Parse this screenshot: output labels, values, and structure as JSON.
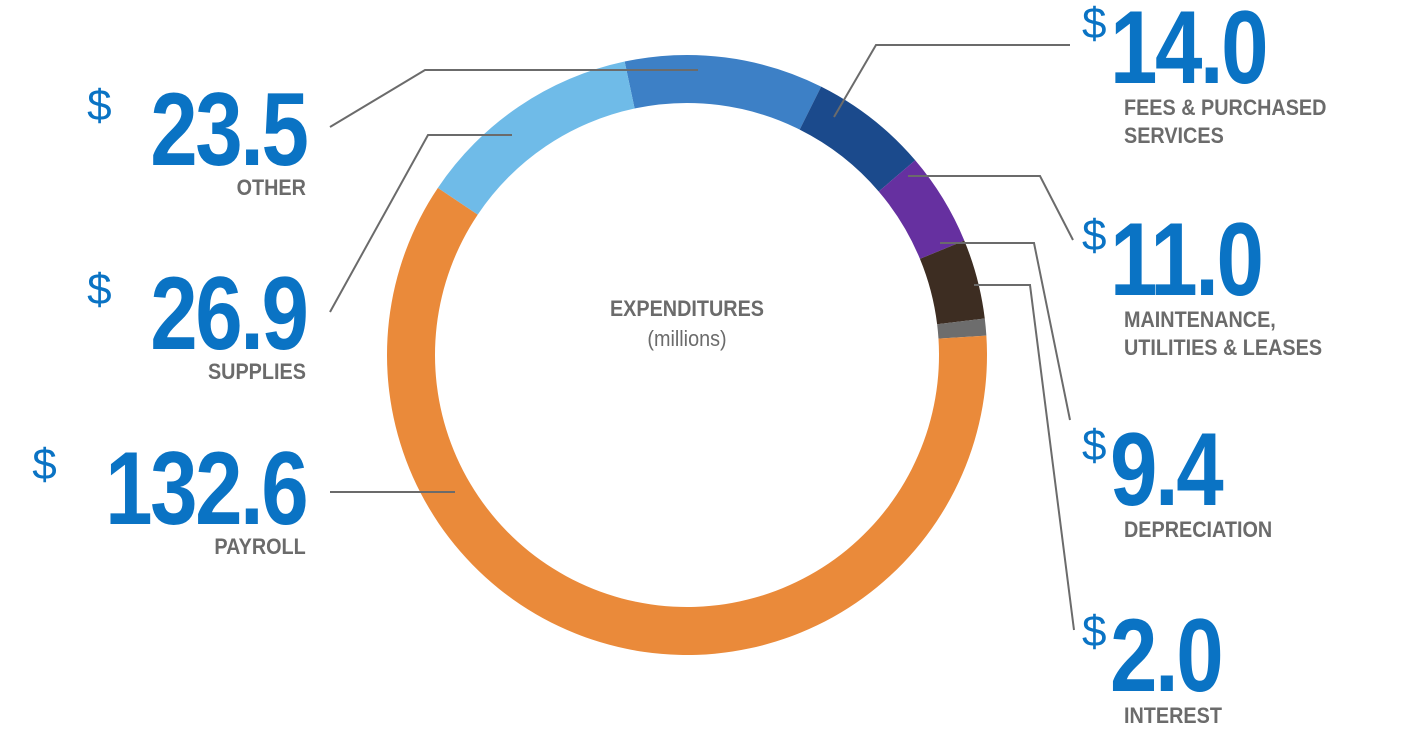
{
  "chart_data": {
    "type": "pie",
    "donut": true,
    "title": "EXPENDITURES",
    "subtitle": "(millions)",
    "currency_symbol": "$",
    "slices": [
      {
        "name": "PAYROLL",
        "value": 132.6,
        "display": "132.6",
        "color": "#ea8a3a"
      },
      {
        "name": "SUPPLIES",
        "value": 26.9,
        "display": "26.9",
        "color": "#6fbbe8"
      },
      {
        "name": "OTHER",
        "value": 23.5,
        "display": "23.5",
        "color": "#3d80c6"
      },
      {
        "name": "FEES & PURCHASED SERVICES",
        "value": 14.0,
        "display": "14.0",
        "color": "#1b4a8c"
      },
      {
        "name": "MAINTENANCE, UTILITIES & LEASES",
        "value": 11.0,
        "display": "11.0",
        "color": "#6630a0"
      },
      {
        "name": "DEPRECIATION",
        "value": 9.4,
        "display": "9.4",
        "color": "#3d2d22"
      },
      {
        "name": "INTEREST",
        "value": 2.0,
        "display": "2.0",
        "color": "#6d6d6d"
      }
    ]
  },
  "labels": {
    "other": {
      "dollar": "$",
      "amount": "23.5",
      "line1": "OTHER"
    },
    "supplies": {
      "dollar": "$",
      "amount": "26.9",
      "line1": "SUPPLIES"
    },
    "payroll": {
      "dollar": "$",
      "amount": "132.6",
      "line1": "PAYROLL"
    },
    "fees": {
      "dollar": "$",
      "amount": "14.0",
      "line1": "FEES & PURCHASED",
      "line2": "SERVICES"
    },
    "maintenance": {
      "dollar": "$",
      "amount": "11.0",
      "line1": "MAINTENANCE,",
      "line2": "UTILITIES & LEASES"
    },
    "depreciation": {
      "dollar": "$",
      "amount": "9.4",
      "line1": "DEPRECIATION"
    },
    "interest": {
      "dollar": "$",
      "amount": "2.0",
      "line1": "INTEREST"
    }
  },
  "colors": {
    "amount": "#0a73c4",
    "name_text": "#6b6b6b",
    "leader_line": "#6b6b6b"
  }
}
